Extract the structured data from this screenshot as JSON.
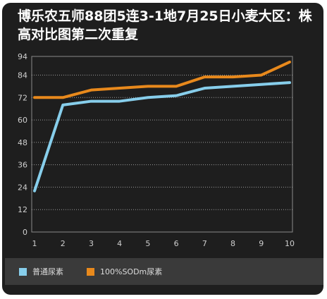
{
  "chart_data": {
    "type": "line",
    "title": "博乐农五师88团5连3-1地7月25日小麦大区：株高对比图第二次重复",
    "x": [
      "1",
      "2",
      "3",
      "4",
      "5",
      "6",
      "7",
      "8",
      "9",
      "10"
    ],
    "yticks": [
      0,
      12,
      24,
      36,
      48,
      60,
      72,
      84,
      94
    ],
    "ylim": [
      0,
      94
    ],
    "grid": true,
    "legend_position": "bottom",
    "series": [
      {
        "name": "普通尿素",
        "color": "#87ceeb",
        "values": [
          22,
          68,
          70,
          70,
          72,
          73,
          77,
          78,
          79,
          80
        ]
      },
      {
        "name": "100%SODm尿素",
        "color": "#e8891c",
        "values": [
          72,
          72,
          76,
          77,
          78,
          78,
          83,
          83,
          84,
          91
        ]
      }
    ]
  }
}
